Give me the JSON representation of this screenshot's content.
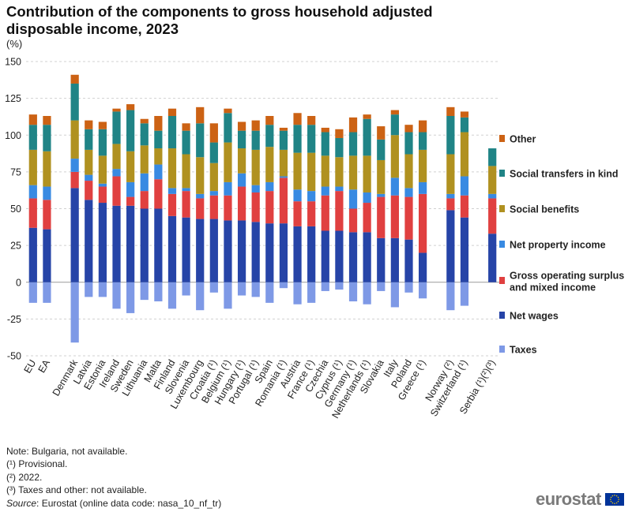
{
  "chart_data": {
    "type": "bar",
    "stacked": true,
    "title": "Contribution of the components to gross household adjusted disposable income, 2023",
    "ylabel": "(%)",
    "ylim": [
      -50,
      150
    ],
    "yticks": [
      -50,
      -25,
      0,
      25,
      50,
      75,
      100,
      125,
      150
    ],
    "legend_position": "right",
    "grid": "horizontal dashed",
    "categories": [
      "EU",
      "EA",
      "",
      "Denmark",
      "Latvia",
      "Estonia",
      "Ireland",
      "Sweden",
      "Lithuania",
      "Malta",
      "Finland",
      "Slovenia",
      "Luxembourg",
      "Croatia (¹)",
      "Belgium (¹)",
      "Hungary (¹)",
      "Portugal (¹)",
      "Spain",
      "Romania (¹)",
      "Austria",
      "France (¹)",
      "Czechia",
      "Cyprus (¹)",
      "Germany (¹)",
      "Netherlands (¹)",
      "Slovakia",
      "Italy",
      "Poland",
      "Greece (¹)",
      "",
      "Norway (²)",
      "Switzerland (¹)",
      "",
      "Serbia (¹)(²)(³)"
    ],
    "series": [
      {
        "name": "Taxes",
        "color": "#7e99e6",
        "values": [
          -14,
          -14,
          null,
          -41,
          -10,
          -10,
          -18,
          -21,
          -12,
          -13,
          -18,
          -9,
          -19,
          -7,
          -18,
          -9,
          -10,
          -14,
          -4,
          -15,
          -14,
          -6,
          -5,
          -13,
          -15,
          -6,
          -17,
          -7,
          -11,
          null,
          -19,
          -16,
          null,
          null
        ]
      },
      {
        "name": "Net wages",
        "color": "#2644a7",
        "values": [
          37,
          36,
          null,
          64,
          56,
          54,
          52,
          52,
          50,
          50,
          45,
          44,
          43,
          43,
          42,
          42,
          41,
          40,
          40,
          38,
          38,
          35,
          35,
          34,
          34,
          30,
          30,
          29,
          20,
          null,
          49,
          44,
          null,
          33
        ]
      },
      {
        "name": "Gross operating surplus and mixed income",
        "color": "#e04040",
        "values": [
          20,
          20,
          null,
          11,
          13,
          11,
          20,
          6,
          12,
          20,
          15,
          18,
          14,
          16,
          17,
          23,
          20,
          22,
          31,
          17,
          17,
          24,
          27,
          16,
          20,
          28,
          29,
          29,
          40,
          null,
          8,
          15,
          null,
          24
        ]
      },
      {
        "name": "Net property income",
        "color": "#388ae2",
        "values": [
          9,
          9,
          null,
          9,
          4,
          2,
          5,
          10,
          12,
          10,
          4,
          2,
          3,
          3,
          9,
          9,
          5,
          6,
          1,
          8,
          7,
          6,
          3,
          13,
          7,
          2,
          12,
          6,
          8,
          null,
          3,
          13,
          null,
          3
        ]
      },
      {
        "name": "Social benefits",
        "color": "#b09120",
        "values": [
          24,
          24,
          null,
          26,
          17,
          19,
          17,
          21,
          19,
          11,
          27,
          23,
          25,
          19,
          27,
          17,
          24,
          24,
          18,
          25,
          26,
          21,
          20,
          23,
          25,
          23,
          29,
          23,
          22,
          null,
          27,
          30,
          null,
          19
        ]
      },
      {
        "name": "Social transfers in kind",
        "color": "#208486",
        "values": [
          17,
          18,
          null,
          25,
          14,
          18,
          22,
          28,
          15,
          12,
          22,
          16,
          23,
          14,
          20,
          12,
          13,
          15,
          13,
          19,
          19,
          16,
          13,
          16,
          25,
          14,
          14,
          15,
          12,
          null,
          26,
          10,
          null,
          12
        ]
      },
      {
        "name": "Other",
        "color": "#cc6214",
        "values": [
          7,
          6,
          null,
          6,
          6,
          5,
          2,
          4,
          3,
          10,
          5,
          5,
          11,
          13,
          3,
          6,
          7,
          6,
          2,
          8,
          6,
          3,
          6,
          10,
          3,
          9,
          3,
          5,
          8,
          null,
          6,
          4,
          null,
          null
        ]
      }
    ]
  },
  "legend_order": [
    "Other",
    "Social transfers in kind",
    "Social benefits",
    "Net property income",
    "Gross operating surplus and mixed income",
    "Net wages",
    "Taxes"
  ],
  "legend_labels": {
    "Other": [
      "Other"
    ],
    "Social transfers in kind": [
      "Social transfers in kind"
    ],
    "Social benefits": [
      "Social benefits"
    ],
    "Net property income": [
      "Net property income"
    ],
    "Gross operating surplus and mixed income": [
      "Gross operating surplus",
      "and mixed income"
    ],
    "Net wages": [
      "Net wages"
    ],
    "Taxes": [
      "Taxes"
    ]
  },
  "notes": {
    "line1": "Note: Bulgaria, not available.",
    "line2": "(¹) Provisional.",
    "line3": "(²) 2022.",
    "line4": "(³) Taxes and other: not available.",
    "source_label": "Source",
    "source_text": ": Eurostat (online data code: nasa_10_nf_tr)"
  },
  "logo": {
    "text": "eurostat",
    "flag_icon": "eu-flag-icon"
  }
}
